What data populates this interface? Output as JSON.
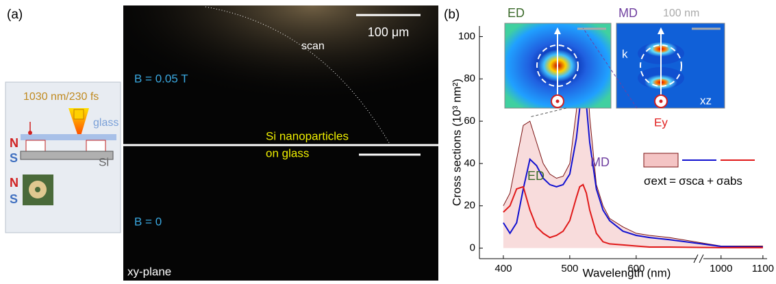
{
  "panel_a": {
    "label": "(a)",
    "laser": "1030 nm/230 fs",
    "glass": "glass",
    "magnet_top_n": "N",
    "magnet_top_s": "S",
    "substrate": "Si",
    "photo_n": "N",
    "photo_s": "S",
    "scan": "scan",
    "scale_bar": "100 μm",
    "field_top": "B = 0.05 T",
    "sample_line1": "Si nanoparticles",
    "sample_line2": "on glass",
    "field_bottom": "B = 0",
    "plane": "xy-plane"
  },
  "chart_data": {
    "type": "line",
    "panel_label": "(b)",
    "x_label": "Wavelength (nm)",
    "y_label": "Cross sections (10³ nm²)",
    "x": [
      400,
      410,
      420,
      430,
      440,
      450,
      460,
      470,
      480,
      490,
      500,
      510,
      515,
      520,
      525,
      530,
      540,
      550,
      560,
      580,
      600,
      620,
      650,
      1000,
      1050,
      1100
    ],
    "xlim": [
      364,
      1110
    ],
    "x_break": [
      695,
      948
    ],
    "xticks": [
      400,
      500,
      600,
      1000,
      1100
    ],
    "ylim": [
      -5,
      105
    ],
    "yticks": [
      0,
      20,
      40,
      60,
      80,
      100
    ],
    "series": [
      {
        "name": "σext",
        "color": "#7a1010",
        "fill": "#f4c4c4",
        "values": [
          20,
          26,
          42,
          58,
          60,
          50,
          40,
          35,
          33,
          34,
          40,
          65,
          90,
          102,
          90,
          62,
          30,
          20,
          14,
          10,
          7,
          6,
          5,
          1,
          1,
          1
        ]
      },
      {
        "name": "σsca",
        "color": "#1010d0",
        "values": [
          12,
          7,
          12,
          28,
          42,
          39,
          33,
          30,
          29,
          30,
          35,
          52,
          66,
          73,
          68,
          50,
          28,
          18,
          13,
          8,
          6,
          5,
          4,
          0.8,
          0.6,
          0.5
        ]
      },
      {
        "name": "σabs",
        "color": "#e01818",
        "values": [
          17,
          20,
          28,
          29,
          18,
          10,
          7,
          5,
          6,
          8,
          13,
          24,
          29,
          30,
          26,
          18,
          7,
          3,
          2,
          1.5,
          1,
          0.5,
          0.5,
          0.2,
          0.2,
          0.2
        ]
      }
    ],
    "legend_equals": "=",
    "legend_plus": "+",
    "annotations": {
      "ed_curve": "ED",
      "md_curve": "MD",
      "ed_inset": "ED",
      "md_inset": "MD",
      "inset_scale": "100 nm",
      "k": "k",
      "plane": "xz",
      "field": "Ey"
    }
  }
}
